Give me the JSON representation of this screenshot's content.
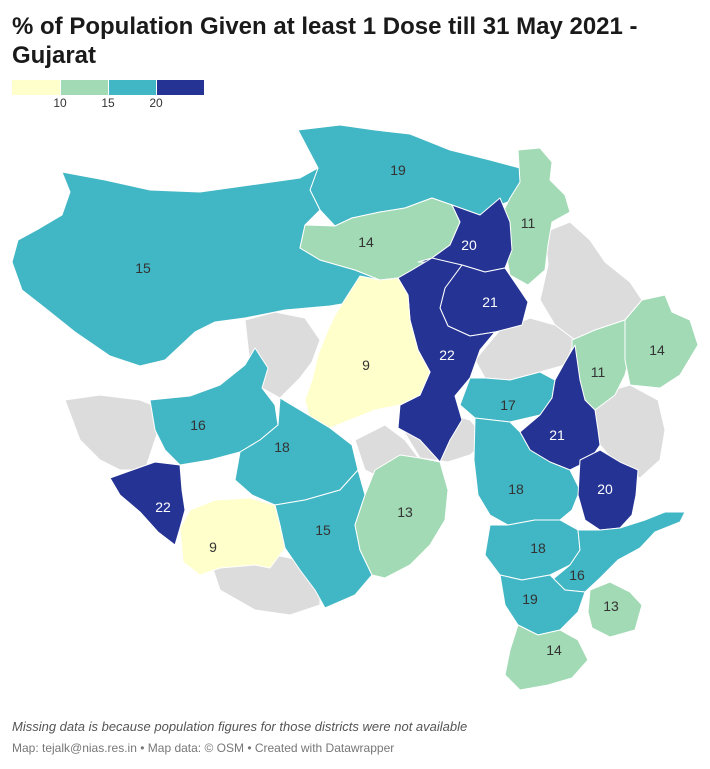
{
  "title": "% of Population Given at least 1 Dose till 31 May 2021 - Gujarat",
  "legend": {
    "ticks": [
      "10",
      "15",
      "20"
    ],
    "colors": [
      "#ffffcc",
      "#a1dab4",
      "#41b6c4",
      "#253494"
    ]
  },
  "colors": {
    "missing": "#dcdcdc",
    "border": "#ffffff",
    "label_dark": "#333333",
    "label_light": "#ffffff"
  },
  "districts": [
    {
      "label": "19",
      "value": 19
    },
    {
      "label": "15",
      "value": 15
    },
    {
      "label": "14",
      "value": 14
    },
    {
      "label": "11",
      "value": 11
    },
    {
      "label": "20",
      "value": 20
    },
    {
      "label": "21",
      "value": 21
    },
    {
      "label": "22",
      "value": 22
    },
    {
      "label": "9",
      "value": 9
    },
    {
      "label": "11",
      "value": 11
    },
    {
      "label": "14",
      "value": 14
    },
    {
      "label": "17",
      "value": 17
    },
    {
      "label": "16",
      "value": 16
    },
    {
      "label": "18",
      "value": 18
    },
    {
      "label": "21",
      "value": 21
    },
    {
      "label": "22",
      "value": 22
    },
    {
      "label": "9",
      "value": 9
    },
    {
      "label": "15",
      "value": 15
    },
    {
      "label": "13",
      "value": 13
    },
    {
      "label": "18",
      "value": 18
    },
    {
      "label": "20",
      "value": 20
    },
    {
      "label": "18",
      "value": 18
    },
    {
      "label": "16",
      "value": 16
    },
    {
      "label": "19",
      "value": 19
    },
    {
      "label": "13",
      "value": 13
    },
    {
      "label": "14",
      "value": 14
    }
  ],
  "footer": {
    "note": "Missing data is because population figures for those districts were not available",
    "credit": "Map: tejalk@nias.res.in • Map data: © OSM • Created with Datawrapper"
  }
}
